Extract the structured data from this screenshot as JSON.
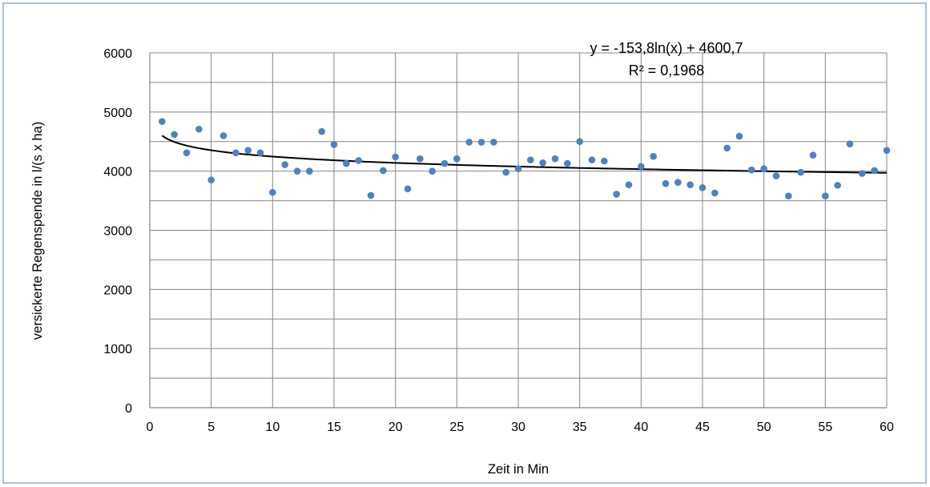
{
  "chart_data": {
    "type": "scatter",
    "title": "",
    "xlabel": "Zeit in Min",
    "ylabel": "versickerte Regenspende in l/(s  x ha)",
    "xlim": [
      0,
      60
    ],
    "ylim": [
      0,
      6000
    ],
    "xticks": [
      0,
      5,
      10,
      15,
      20,
      25,
      30,
      35,
      40,
      45,
      50,
      55,
      60
    ],
    "yticks": [
      0,
      1000,
      2000,
      3000,
      4000,
      5000,
      6000
    ],
    "grid": {
      "vertical_step": 5,
      "horizontal_step": 500
    },
    "series": [
      {
        "marker_color": "#4f81bd",
        "x": [
          1,
          2,
          3,
          4,
          5,
          6,
          7,
          8,
          9,
          10,
          11,
          12,
          13,
          14,
          15,
          16,
          17,
          18,
          19,
          20,
          21,
          22,
          23,
          24,
          25,
          26,
          27,
          28,
          29,
          30,
          31,
          32,
          33,
          34,
          35,
          36,
          37,
          38,
          39,
          40,
          41,
          42,
          43,
          44,
          45,
          46,
          47,
          48,
          49,
          50,
          51,
          52,
          53,
          54,
          55,
          56,
          57,
          58,
          59,
          60
        ],
        "y": [
          4840,
          4620,
          4310,
          4710,
          3850,
          4600,
          4310,
          4350,
          4310,
          3640,
          4110,
          4000,
          4000,
          4670,
          4450,
          4130,
          4180,
          3590,
          4010,
          4240,
          3700,
          4210,
          4000,
          4130,
          4210,
          4490,
          4490,
          4490,
          3980,
          4040,
          4190,
          4140,
          4210,
          4130,
          4500,
          4190,
          4170,
          3610,
          3770,
          4080,
          4250,
          3790,
          3810,
          3770,
          3720,
          3630,
          4390,
          4590,
          4020,
          4040,
          3920,
          3580,
          3980,
          4270,
          3580,
          3760,
          4460,
          3960,
          4010,
          4350
        ]
      }
    ],
    "trendline": {
      "type": "logarithmic",
      "a": -153.8,
      "b": 4600.7,
      "color": "#000000",
      "equation_label": "y = -153,8ln(x) + 4600,7",
      "r2_label": "R² = 0,1968"
    },
    "legend": "none"
  }
}
